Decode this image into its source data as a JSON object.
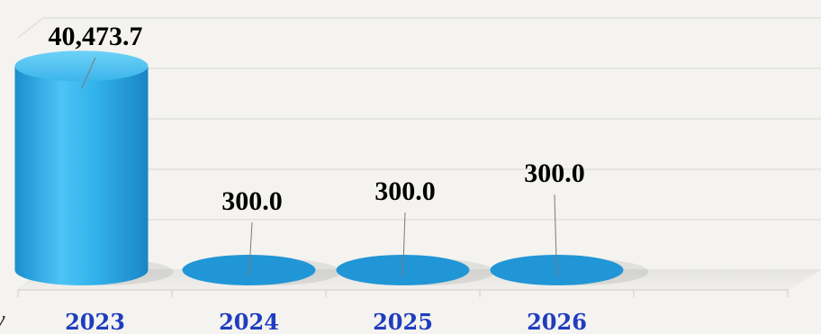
{
  "chart_data": {
    "type": "bar",
    "style": "3d-cylinder",
    "categories": [
      "2023",
      "2024",
      "2025",
      "2026"
    ],
    "values": [
      40473.7,
      300.0,
      300.0,
      300.0
    ],
    "value_labels": [
      "40,473.7",
      "300.0",
      "300.0",
      "300.0"
    ],
    "title": "",
    "xlabel": "",
    "ylabel": "",
    "ylim": [
      0,
      50000
    ],
    "grid": true,
    "legend": "none",
    "bar_color": "#2aa8e2",
    "label_color": "#000000",
    "category_color": "#1f3dbf"
  },
  "stray_text": "y"
}
